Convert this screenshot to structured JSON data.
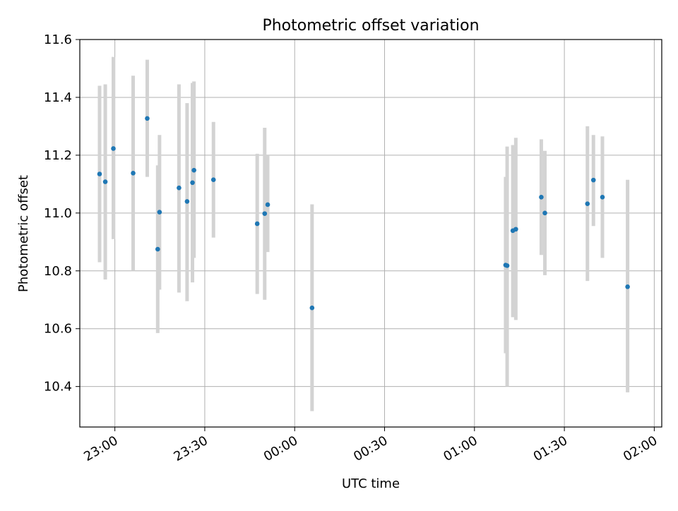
{
  "chart_data": {
    "type": "scatter",
    "title": "Photometric offset variation",
    "xlabel": "UTC time",
    "ylabel": "Photometric offset",
    "xlim_minutes_from_midnight": [
      -71.7,
      122.5
    ],
    "ylim": [
      10.26,
      11.6
    ],
    "grid": true,
    "x_tick_labels": [
      "23:00",
      "23:30",
      "00:00",
      "00:30",
      "01:00",
      "01:30",
      "02:00"
    ],
    "x_ticks_minutes": [
      -60,
      -30,
      0,
      30,
      60,
      90,
      120
    ],
    "y_ticks": [
      10.4,
      10.6,
      10.8,
      11.0,
      11.2,
      11.4,
      11.6
    ],
    "y_tick_labels": [
      "10.4",
      "10.6",
      "10.8",
      "11.0",
      "11.2",
      "11.4",
      "11.6"
    ],
    "point_color": "#1f77b4",
    "errorbar_color": "#d3d3d3",
    "x_utc": [
      "22:54.9",
      "22:56.8",
      "22:59.5",
      "23:06.1",
      "23:10.8",
      "23:14.3",
      "23:14.9",
      "23:21.4",
      "23:24.1",
      "23:25.9",
      "23:26.4",
      "23:32.9",
      "23:47.5",
      "23:50.0",
      "23:51.0",
      "00:05.8",
      "01:10.4",
      "01:10.9",
      "01:12.8",
      "01:13.8",
      "01:22.3",
      "01:23.5",
      "01:37.7",
      "01:39.7",
      "01:42.7",
      "01:51.1"
    ],
    "x_minutes": [
      -65.1,
      -63.2,
      -60.5,
      -53.9,
      -49.2,
      -45.7,
      -45.1,
      -38.6,
      -35.9,
      -34.1,
      -33.6,
      -27.1,
      -12.5,
      -10.0,
      -9.0,
      5.8,
      70.4,
      70.9,
      72.8,
      73.8,
      82.3,
      83.5,
      97.7,
      99.7,
      102.7,
      111.1
    ],
    "y": [
      11.135,
      11.108,
      11.223,
      11.138,
      11.327,
      10.875,
      11.003,
      11.087,
      11.04,
      11.105,
      11.148,
      11.115,
      10.963,
      10.998,
      11.029,
      10.672,
      10.82,
      10.818,
      10.939,
      10.944,
      11.055,
      11.0,
      11.032,
      11.114,
      11.055,
      10.745
    ],
    "y_err_low": [
      10.83,
      10.77,
      10.91,
      10.8,
      11.125,
      10.585,
      10.735,
      10.725,
      10.695,
      10.76,
      10.845,
      10.915,
      10.72,
      10.7,
      10.865,
      10.315,
      10.515,
      10.4,
      10.64,
      10.63,
      10.855,
      10.785,
      10.765,
      10.955,
      10.845,
      10.38
    ],
    "y_err_high": [
      11.44,
      11.445,
      11.54,
      11.475,
      11.53,
      11.165,
      11.27,
      11.445,
      11.38,
      11.45,
      11.455,
      11.315,
      11.205,
      11.295,
      11.2,
      11.03,
      11.125,
      11.23,
      11.235,
      11.26,
      11.255,
      11.215,
      11.3,
      11.27,
      11.265,
      11.115
    ]
  }
}
